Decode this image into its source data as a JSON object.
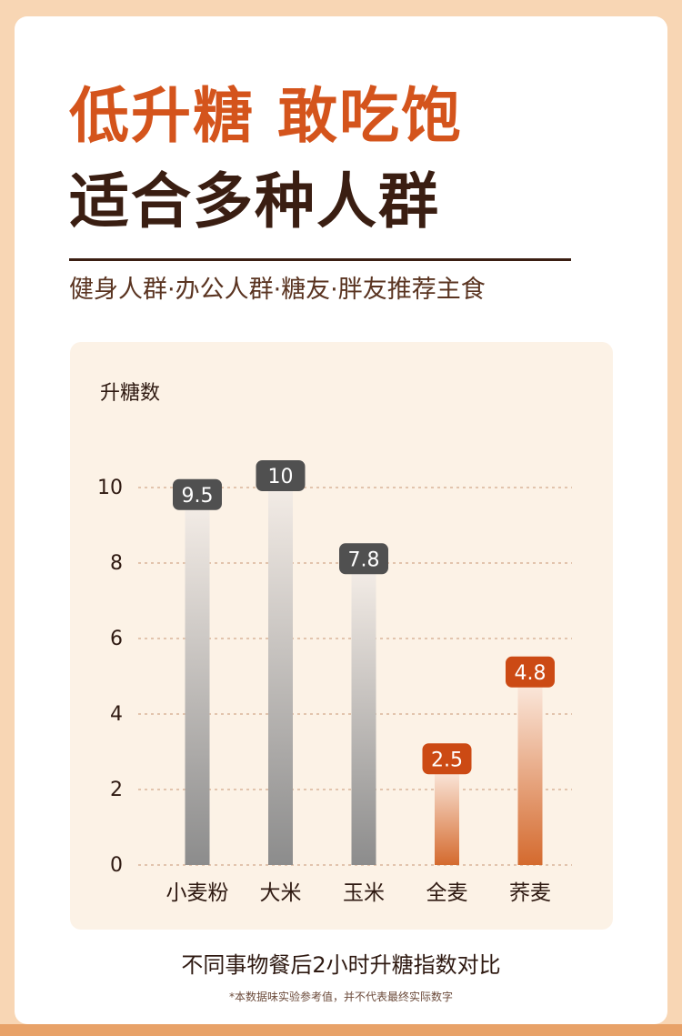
{
  "headline": {
    "line1": "低升糖 敢吃饱",
    "line2": "适合多种人群"
  },
  "subtitle": "健身人群·办公人群·糖友·胖友推荐主食",
  "chart_data": {
    "type": "bar",
    "title": "",
    "ylabel": "升糖数",
    "xlabel": "",
    "categories": [
      "小麦粉",
      "大米",
      "玉米",
      "全麦",
      "荞麦"
    ],
    "values": [
      9.5,
      10,
      7.8,
      2.5,
      4.8
    ],
    "value_labels": [
      "9.5",
      "10",
      "7.8",
      "2.5",
      "4.8"
    ],
    "ylim": [
      0,
      10
    ],
    "yticks": [
      "0",
      "2",
      "4",
      "6",
      "8",
      "10"
    ],
    "grid": true,
    "bar_styles": [
      "gray",
      "gray",
      "gray",
      "orange",
      "orange"
    ],
    "colors": {
      "gray_top": "#f3ece6",
      "gray_bottom": "#8c8c8c",
      "orange_top": "#fbe8dc",
      "orange_bottom": "#d46a2e",
      "gray_label_bg": "#505050",
      "orange_label_bg": "#cc4a14",
      "grid": "#d9b49a"
    }
  },
  "caption": "不同事物餐后2小时升糖指数对比",
  "footnote": "*本数据味实验参考值，并不代表最终实际数字"
}
